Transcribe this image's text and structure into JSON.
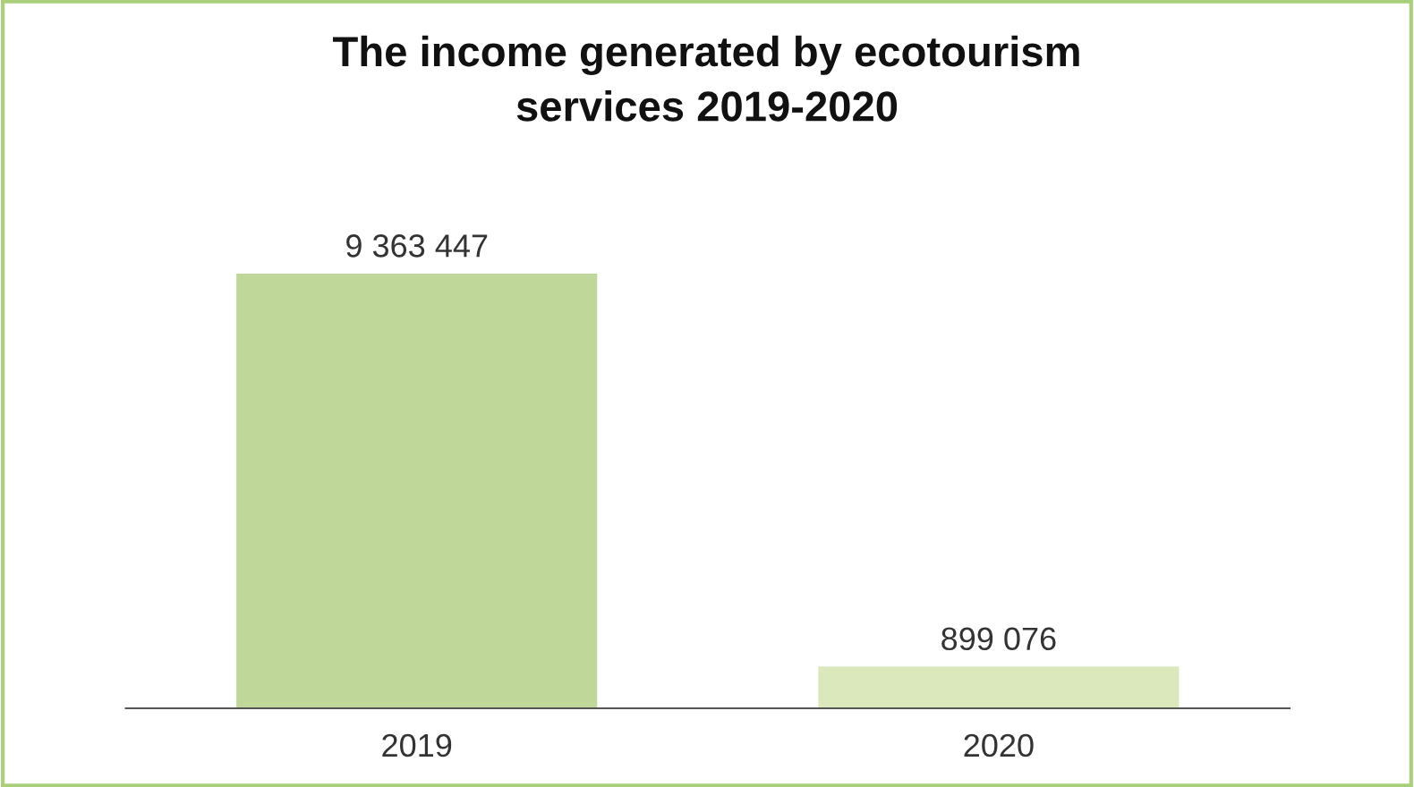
{
  "chart_data": {
    "type": "bar",
    "title": "The income generated by ecotourism\nservices 2019-2020",
    "categories": [
      "2019",
      "2020"
    ],
    "values": [
      9363447,
      899076
    ],
    "colors": [
      "#bfd799",
      "#dae8bb"
    ],
    "value_labels": [
      "9 363 447",
      "899 076"
    ],
    "grid": false
  }
}
